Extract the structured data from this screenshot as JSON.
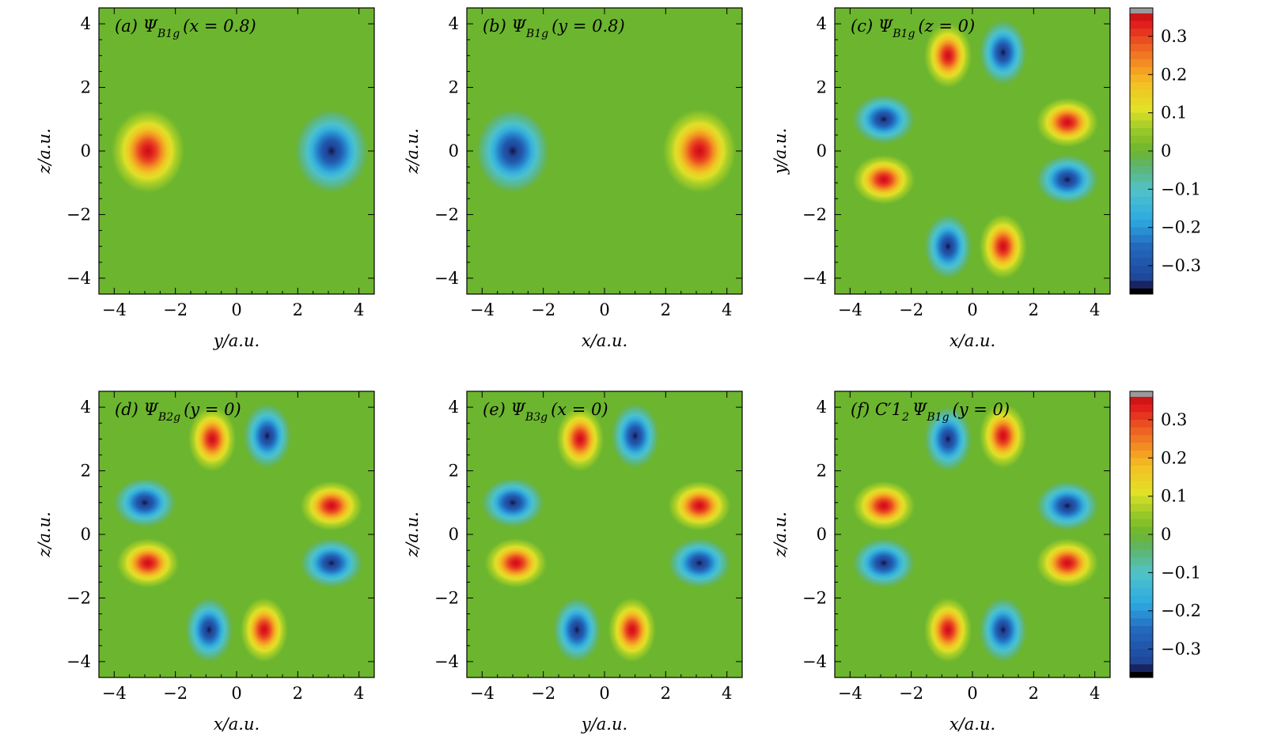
{
  "figure": {
    "colorbar_ticks": [
      "0.3",
      "0.2",
      "0.1",
      "0",
      "−0.1",
      "−0.2",
      "−0.3"
    ]
  },
  "colors": {
    "positive_peak": "#e8201d",
    "negative_peak": "#1f56a5",
    "background_zero": "#6cb52e"
  },
  "chart_data": [
    {
      "type": "heatmap",
      "id": "a",
      "title": "(a) ΨB1g (x = 0.8)",
      "title_main": "(a) Ψ",
      "title_sub": "B1g",
      "title_rest": "(x = 0.8)",
      "xlabel": "y/a.u.",
      "ylabel": "z/a.u.",
      "xlim": [
        -4.5,
        4.5
      ],
      "ylim": [
        -4.5,
        4.5
      ],
      "xticks": [
        "−4",
        "−2",
        "0",
        "2",
        "4"
      ],
      "yticks": [
        "−4",
        "−2",
        "0",
        "2",
        "4"
      ],
      "zlim": [
        -0.36,
        0.36
      ],
      "lobes": [
        {
          "x": -2.9,
          "y": 0.0,
          "value": 0.36,
          "sx": 1.0,
          "sy": 1.1
        },
        {
          "x": 3.1,
          "y": 0.0,
          "value": -0.36,
          "sx": 1.0,
          "sy": 1.1
        }
      ]
    },
    {
      "type": "heatmap",
      "id": "b",
      "title": "(b) ΨB1g (y = 0.8)",
      "title_main": "(b) Ψ",
      "title_sub": "B1g",
      "title_rest": "(y = 0.8)",
      "xlabel": "x/a.u.",
      "ylabel": "z/a.u.",
      "xlim": [
        -4.5,
        4.5
      ],
      "ylim": [
        -4.5,
        4.5
      ],
      "xticks": [
        "−4",
        "−2",
        "0",
        "2",
        "4"
      ],
      "yticks": [
        "−4",
        "−2",
        "0",
        "2",
        "4"
      ],
      "zlim": [
        -0.36,
        0.36
      ],
      "lobes": [
        {
          "x": -3.0,
          "y": 0.0,
          "value": -0.36,
          "sx": 1.0,
          "sy": 1.1
        },
        {
          "x": 3.1,
          "y": 0.0,
          "value": 0.36,
          "sx": 1.0,
          "sy": 1.1
        }
      ]
    },
    {
      "type": "heatmap",
      "id": "c",
      "title": "(c) ΨB1g (z = 0)",
      "title_main": "(c) Ψ",
      "title_sub": "B1g",
      "title_rest": "(z = 0)",
      "xlabel": "x/a.u.",
      "ylabel": "y/a.u.",
      "xlim": [
        -4.5,
        4.5
      ],
      "ylim": [
        -4.5,
        4.5
      ],
      "xticks": [
        "−4",
        "−2",
        "0",
        "2",
        "4"
      ],
      "yticks": [
        "−4",
        "−2",
        "0",
        "2",
        "4"
      ],
      "zlim": [
        -0.36,
        0.36
      ],
      "lobes": [
        {
          "x": -0.8,
          "y": 3.0,
          "value": 0.36,
          "sx": 0.65,
          "sy": 0.85
        },
        {
          "x": 1.0,
          "y": 3.1,
          "value": -0.36,
          "sx": 0.65,
          "sy": 0.85
        },
        {
          "x": 3.1,
          "y": 0.9,
          "value": 0.36,
          "sx": 0.85,
          "sy": 0.65
        },
        {
          "x": 3.1,
          "y": -0.9,
          "value": -0.36,
          "sx": 0.85,
          "sy": 0.65
        },
        {
          "x": 1.0,
          "y": -3.0,
          "value": 0.36,
          "sx": 0.65,
          "sy": 0.85
        },
        {
          "x": -0.8,
          "y": -3.0,
          "value": -0.36,
          "sx": 0.65,
          "sy": 0.85
        },
        {
          "x": -2.9,
          "y": -0.9,
          "value": 0.36,
          "sx": 0.85,
          "sy": 0.65
        },
        {
          "x": -2.9,
          "y": 1.0,
          "value": -0.36,
          "sx": 0.85,
          "sy": 0.65
        }
      ]
    },
    {
      "type": "heatmap",
      "id": "d",
      "title": "(d) ΨB2g (y = 0)",
      "title_main": "(d) Ψ",
      "title_sub": "B2g",
      "title_rest": "(y = 0)",
      "xlabel": "x/a.u.",
      "ylabel": "z/a.u.",
      "xlim": [
        -4.5,
        4.5
      ],
      "ylim": [
        -4.5,
        4.5
      ],
      "xticks": [
        "−4",
        "−2",
        "0",
        "2",
        "4"
      ],
      "yticks": [
        "−4",
        "−2",
        "0",
        "2",
        "4"
      ],
      "zlim": [
        -0.36,
        0.36
      ],
      "lobes": [
        {
          "x": -0.8,
          "y": 3.0,
          "value": 0.36,
          "sx": 0.65,
          "sy": 0.85
        },
        {
          "x": 1.0,
          "y": 3.1,
          "value": -0.36,
          "sx": 0.65,
          "sy": 0.85
        },
        {
          "x": 3.1,
          "y": 0.9,
          "value": 0.36,
          "sx": 0.85,
          "sy": 0.65
        },
        {
          "x": 3.1,
          "y": -0.9,
          "value": -0.36,
          "sx": 0.85,
          "sy": 0.65
        },
        {
          "x": 0.9,
          "y": -3.0,
          "value": 0.36,
          "sx": 0.65,
          "sy": 0.85
        },
        {
          "x": -0.9,
          "y": -3.0,
          "value": -0.36,
          "sx": 0.65,
          "sy": 0.85
        },
        {
          "x": -2.9,
          "y": -0.9,
          "value": 0.36,
          "sx": 0.85,
          "sy": 0.65
        },
        {
          "x": -3.0,
          "y": 1.0,
          "value": -0.36,
          "sx": 0.85,
          "sy": 0.65
        }
      ]
    },
    {
      "type": "heatmap",
      "id": "e",
      "title": "(e) ΨB3g (x = 0)",
      "title_main": "(e) Ψ",
      "title_sub": "B3g",
      "title_rest": "(x = 0)",
      "xlabel": "y/a.u.",
      "ylabel": "z/a.u.",
      "xlim": [
        -4.5,
        4.5
      ],
      "ylim": [
        -4.5,
        4.5
      ],
      "xticks": [
        "−4",
        "−2",
        "0",
        "2",
        "4"
      ],
      "yticks": [
        "−4",
        "−2",
        "0",
        "2",
        "4"
      ],
      "zlim": [
        -0.36,
        0.36
      ],
      "lobes": [
        {
          "x": -0.8,
          "y": 3.0,
          "value": 0.36,
          "sx": 0.65,
          "sy": 0.85
        },
        {
          "x": 1.0,
          "y": 3.1,
          "value": -0.36,
          "sx": 0.65,
          "sy": 0.85
        },
        {
          "x": 3.1,
          "y": 0.9,
          "value": 0.36,
          "sx": 0.85,
          "sy": 0.65
        },
        {
          "x": 3.1,
          "y": -0.9,
          "value": -0.36,
          "sx": 0.85,
          "sy": 0.65
        },
        {
          "x": 0.9,
          "y": -3.0,
          "value": 0.36,
          "sx": 0.65,
          "sy": 0.85
        },
        {
          "x": -0.9,
          "y": -3.0,
          "value": -0.36,
          "sx": 0.65,
          "sy": 0.85
        },
        {
          "x": -2.9,
          "y": -0.9,
          "value": 0.36,
          "sx": 0.85,
          "sy": 0.65
        },
        {
          "x": -3.0,
          "y": 1.0,
          "value": -0.36,
          "sx": 0.85,
          "sy": 0.65
        }
      ]
    },
    {
      "type": "heatmap",
      "id": "f",
      "title": "(f) C′12 ΨB1g (y = 0)",
      "title_main": "(f) C′1",
      "title_sub2": "2",
      "title_psi": "Ψ",
      "title_sub": "B1g",
      "title_rest": "(y = 0)",
      "xlabel": "x/a.u.",
      "ylabel": "z/a.u.",
      "xlim": [
        -4.5,
        4.5
      ],
      "ylim": [
        -4.5,
        4.5
      ],
      "xticks": [
        "−4",
        "−2",
        "0",
        "2",
        "4"
      ],
      "yticks": [
        "−4",
        "−2",
        "0",
        "2",
        "4"
      ],
      "zlim": [
        -0.36,
        0.36
      ],
      "lobes": [
        {
          "x": -0.8,
          "y": 3.0,
          "value": -0.36,
          "sx": 0.65,
          "sy": 0.85
        },
        {
          "x": 1.0,
          "y": 3.1,
          "value": 0.36,
          "sx": 0.65,
          "sy": 0.85
        },
        {
          "x": 3.1,
          "y": 0.9,
          "value": -0.36,
          "sx": 0.85,
          "sy": 0.65
        },
        {
          "x": 3.1,
          "y": -0.9,
          "value": 0.36,
          "sx": 0.85,
          "sy": 0.65
        },
        {
          "x": 1.0,
          "y": -3.0,
          "value": -0.36,
          "sx": 0.65,
          "sy": 0.85
        },
        {
          "x": -0.8,
          "y": -3.0,
          "value": 0.36,
          "sx": 0.65,
          "sy": 0.85
        },
        {
          "x": -2.9,
          "y": -0.9,
          "value": -0.36,
          "sx": 0.85,
          "sy": 0.65
        },
        {
          "x": -2.9,
          "y": 0.9,
          "value": 0.36,
          "sx": 0.85,
          "sy": 0.65
        }
      ]
    }
  ]
}
